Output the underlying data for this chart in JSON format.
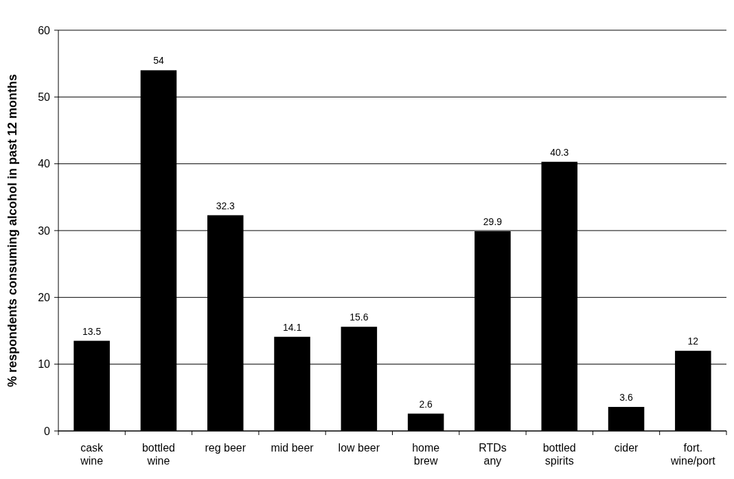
{
  "chart_data": {
    "type": "bar",
    "ylabel": "% respondents consuming alcohol in past 12 months",
    "categories": [
      "cask\nwine",
      "bottled\nwine",
      "reg beer",
      "mid beer",
      "low beer",
      "home\nbrew",
      "RTDs\nany",
      "bottled\nspirits",
      "cider",
      "fort.\nwine/port"
    ],
    "values": [
      13.5,
      54,
      32.3,
      14.1,
      15.6,
      2.6,
      29.9,
      40.3,
      3.6,
      12
    ],
    "color": "#000000",
    "ylim": [
      0,
      60
    ],
    "yticks": [
      0,
      10,
      20,
      30,
      40,
      50,
      60
    ],
    "grid": "y",
    "data_labels": true
  }
}
